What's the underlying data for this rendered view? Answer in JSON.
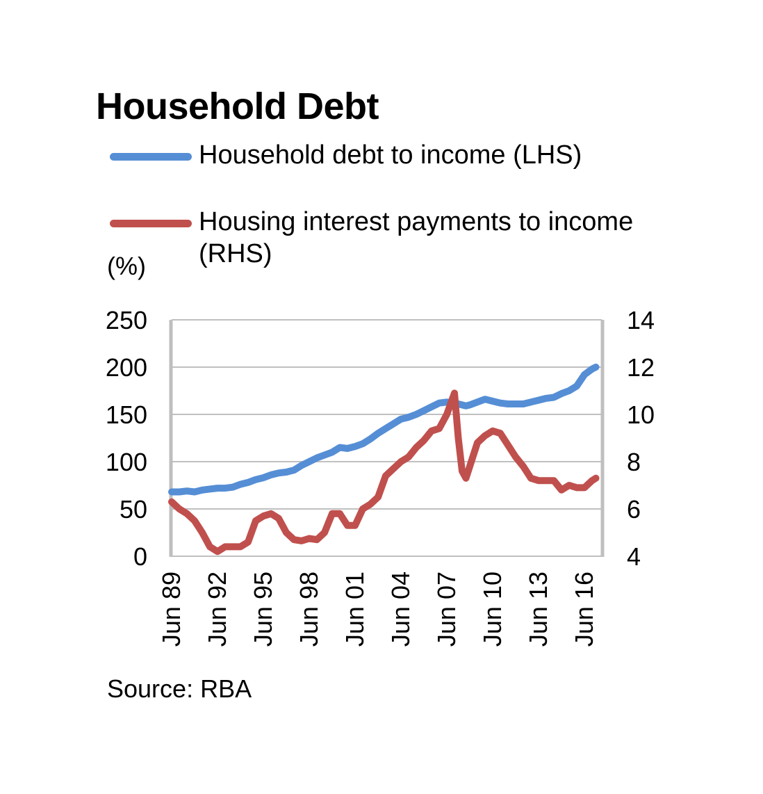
{
  "title": "Household Debt",
  "unit_label": "(%)",
  "source": "Source: RBA",
  "legend": [
    {
      "label_line1": "Household debt to income (LHS)",
      "label_line2": "",
      "color": "#558ED5"
    },
    {
      "label_line1": "Housing interest payments to income",
      "label_line2": "(RHS)",
      "color": "#C0504D"
    }
  ],
  "chart_data": {
    "type": "line",
    "title": "Household Debt",
    "xlabel": "",
    "ylabel": "(%)",
    "ylim": [
      0,
      250
    ],
    "y2lim": [
      4,
      14
    ],
    "y_ticks": [
      0,
      50,
      100,
      150,
      200,
      250
    ],
    "y2_ticks": [
      4,
      6,
      8,
      10,
      12,
      14
    ],
    "x_tick_labels": [
      "Jun 89",
      "Jun 92",
      "Jun 95",
      "Jun 98",
      "Jun 01",
      "Jun 04",
      "Jun 07",
      "Jun 10",
      "Jun 13",
      "Jun 16"
    ],
    "grid": true,
    "legend_position": "top",
    "x": [
      1989.5,
      1990,
      1990.5,
      1991,
      1991.5,
      1992,
      1992.5,
      1993,
      1993.5,
      1994,
      1994.5,
      1995,
      1995.5,
      1996,
      1996.5,
      1997,
      1997.5,
      1998,
      1998.5,
      1999,
      1999.5,
      2000,
      2000.5,
      2001,
      2001.5,
      2002,
      2002.5,
      2003,
      2003.5,
      2004,
      2004.5,
      2005,
      2005.5,
      2006,
      2006.5,
      2007,
      2007.5,
      2008,
      2008.25,
      2008.5,
      2008.75,
      2009,
      2009.5,
      2010,
      2010.5,
      2011,
      2011.5,
      2012,
      2012.5,
      2013,
      2013.5,
      2014,
      2014.5,
      2015,
      2015.5,
      2016,
      2016.5,
      2017,
      2017.25
    ],
    "series": [
      {
        "name": "Household debt to income (LHS)",
        "axis": "left",
        "color": "#558ED5",
        "values": [
          68,
          68,
          69,
          68,
          70,
          71,
          72,
          72,
          73,
          76,
          78,
          81,
          83,
          86,
          88,
          89,
          91,
          96,
          100,
          104,
          107,
          110,
          115,
          114,
          116,
          119,
          124,
          130,
          135,
          140,
          145,
          147,
          150,
          154,
          158,
          162,
          163,
          162,
          161,
          160,
          159,
          160,
          163,
          166,
          164,
          162,
          161,
          161,
          161,
          163,
          165,
          167,
          168,
          172,
          175,
          180,
          192,
          198,
          200
        ]
      },
      {
        "name": "Housing interest payments to income (RHS)",
        "axis": "right",
        "color": "#C0504D",
        "values": [
          6.3,
          6.0,
          5.8,
          5.5,
          5.0,
          4.4,
          4.2,
          4.4,
          4.4,
          4.4,
          4.6,
          5.5,
          5.7,
          5.8,
          5.6,
          5.0,
          4.7,
          4.65,
          4.75,
          4.7,
          5.0,
          5.8,
          5.8,
          5.3,
          5.3,
          6.0,
          6.2,
          6.5,
          7.4,
          7.7,
          8.0,
          8.2,
          8.6,
          8.9,
          9.3,
          9.4,
          10.0,
          10.9,
          9.0,
          7.6,
          7.3,
          7.8,
          8.8,
          9.1,
          9.3,
          9.2,
          8.7,
          8.2,
          7.8,
          7.3,
          7.2,
          7.2,
          7.2,
          6.8,
          7.0,
          6.9,
          6.9,
          7.2,
          7.3
        ]
      }
    ]
  }
}
